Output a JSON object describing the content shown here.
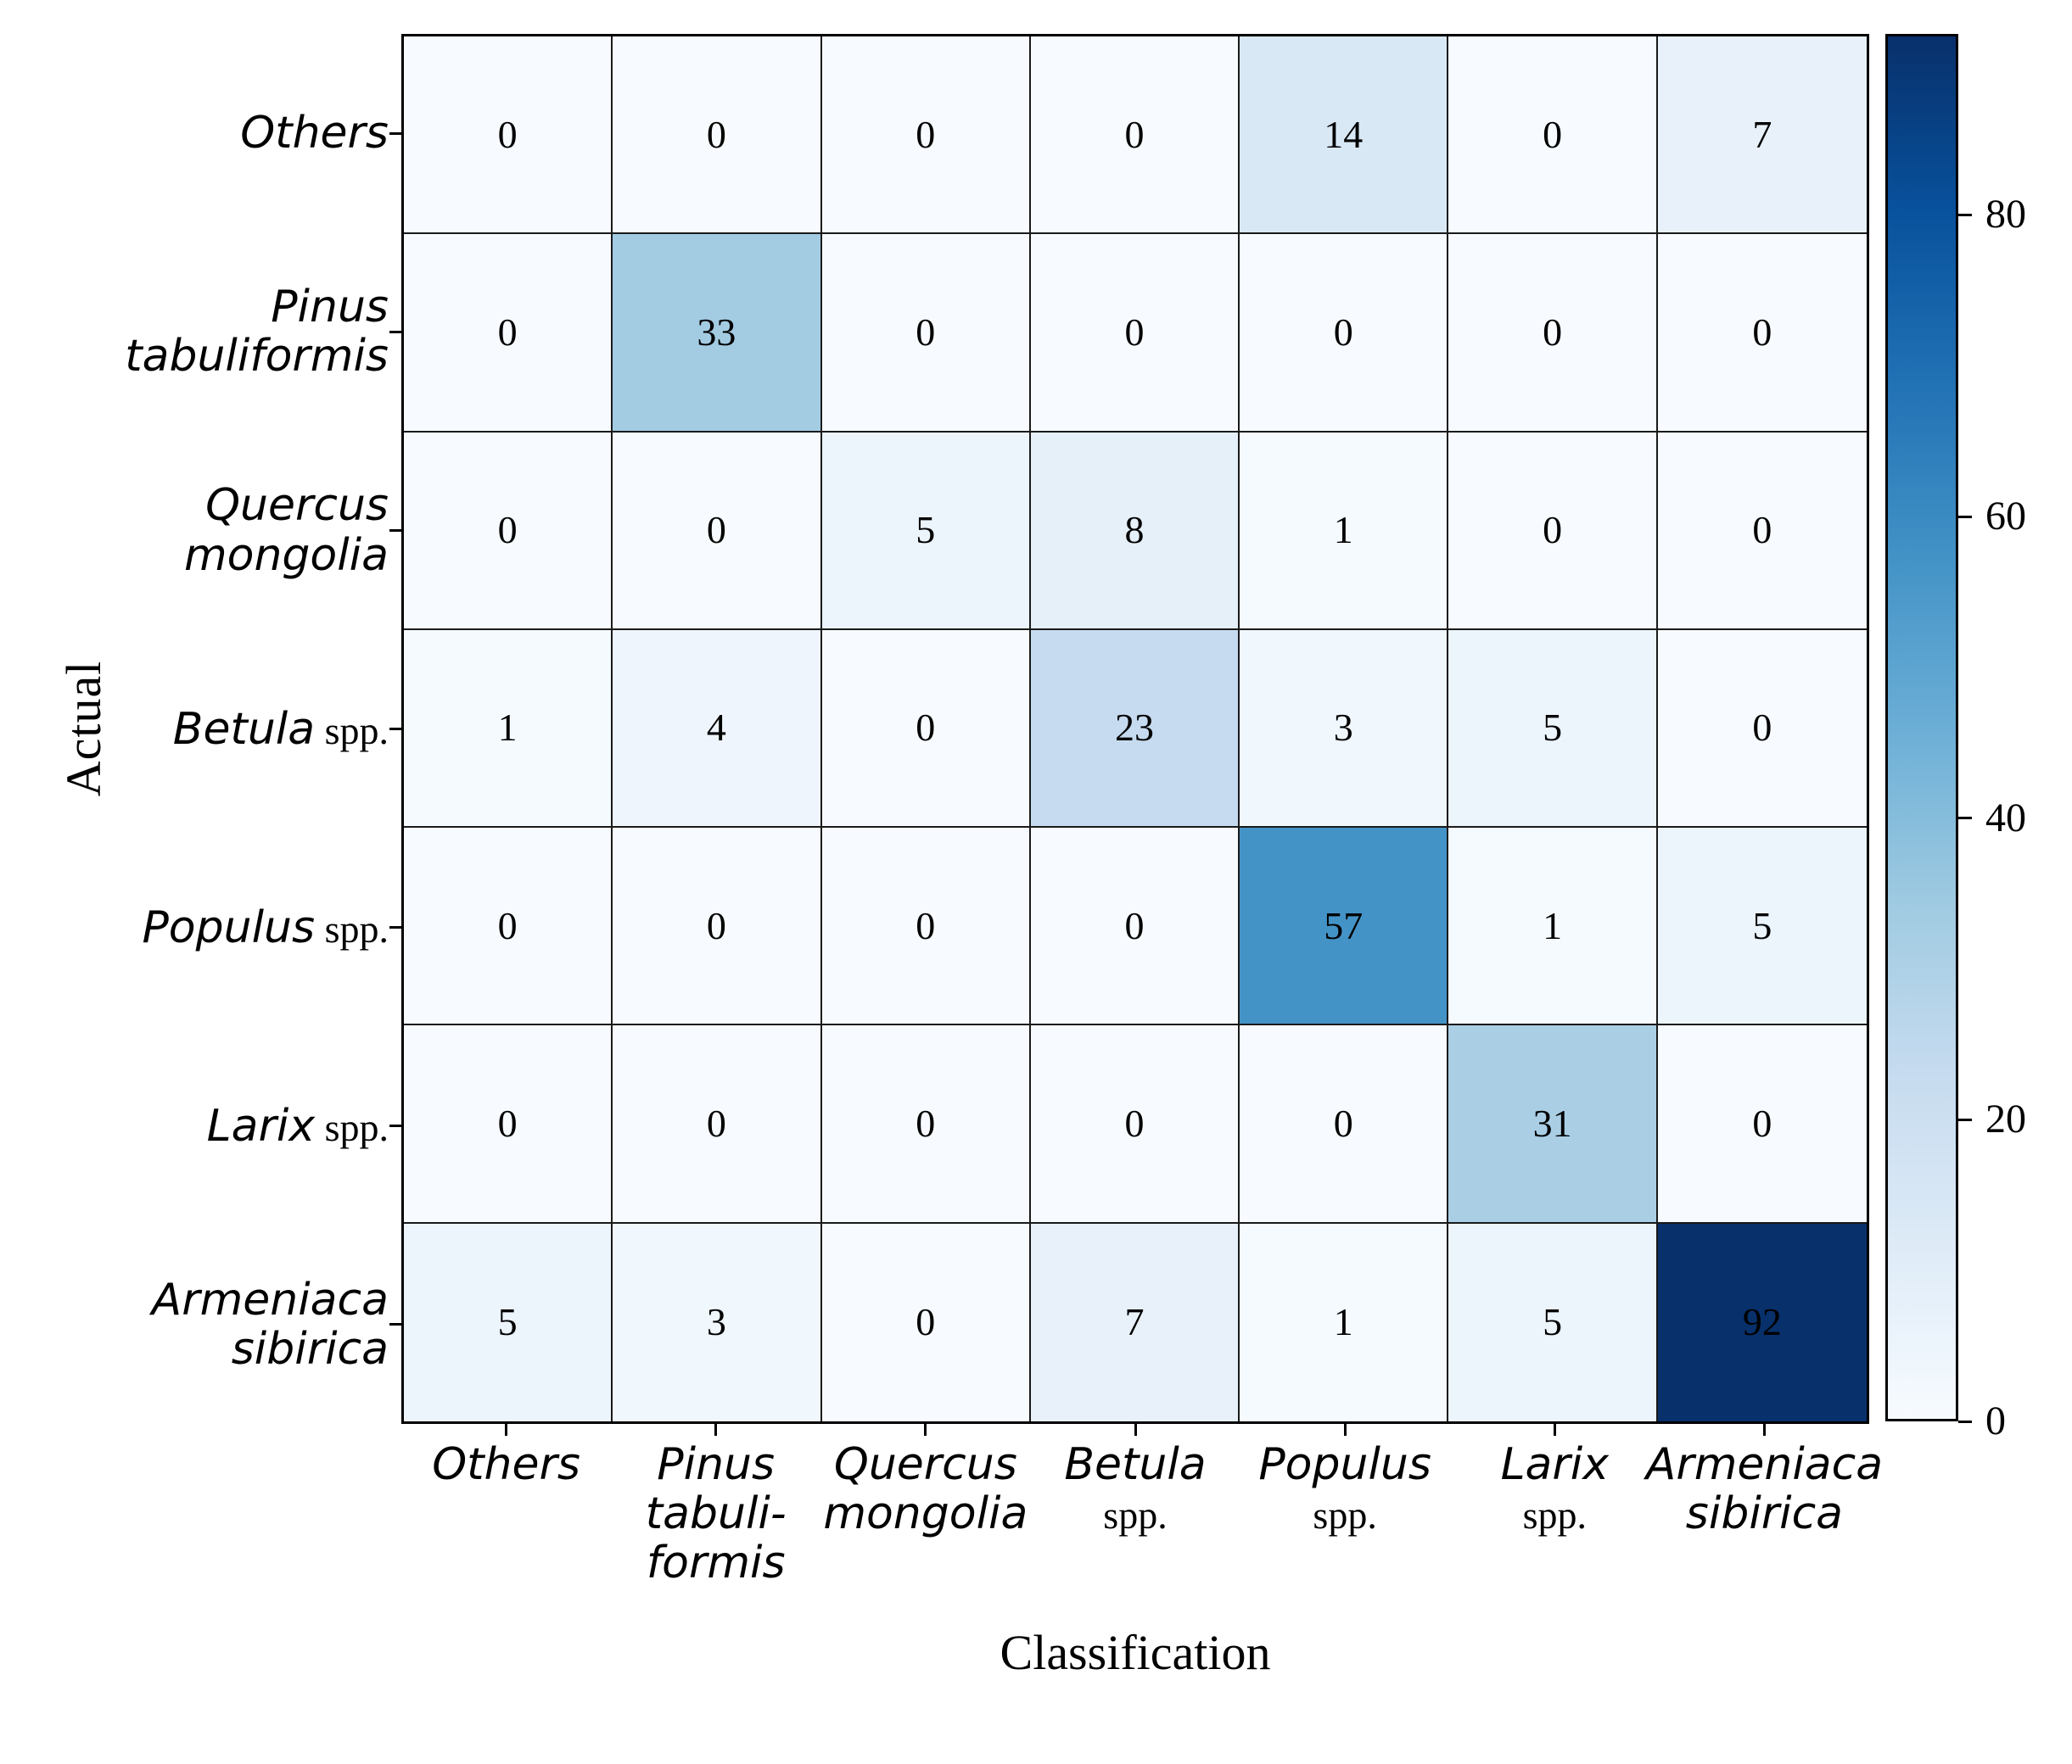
{
  "figure": {
    "background": "#ffffff",
    "grid_line_color": "#1a1a1a",
    "outer_border_color": "#000000",
    "text_color": "#000000"
  },
  "chart_data": {
    "type": "heatmap",
    "title": "",
    "xlabel": "Classification",
    "ylabel": "Actual",
    "colormap": "Blues",
    "vmin": 0,
    "vmax": 92,
    "legend_position": "right-colorbar",
    "grid": true,
    "colorbar_ticks": [
      0,
      20,
      40,
      60,
      80
    ],
    "colormap_anchors": [
      {
        "pos": 0.0,
        "color": "#f7fbff"
      },
      {
        "pos": 0.125,
        "color": "#deebf7"
      },
      {
        "pos": 0.25,
        "color": "#c6dbef"
      },
      {
        "pos": 0.375,
        "color": "#9ecae1"
      },
      {
        "pos": 0.5,
        "color": "#6baed6"
      },
      {
        "pos": 0.625,
        "color": "#4292c6"
      },
      {
        "pos": 0.75,
        "color": "#2171b5"
      },
      {
        "pos": 0.875,
        "color": "#08519c"
      },
      {
        "pos": 1.0,
        "color": "#08306b"
      }
    ],
    "row_labels": [
      {
        "name": "Others",
        "lines": [
          [
            {
              "t": "Others",
              "i": 1
            }
          ]
        ]
      },
      {
        "name": "Pinus tabuliformis",
        "lines": [
          [
            {
              "t": "Pinus",
              "i": 1
            }
          ],
          [
            {
              "t": "tabuliformis",
              "i": 1
            }
          ]
        ]
      },
      {
        "name": "Quercus mongolia",
        "lines": [
          [
            {
              "t": "Quercus",
              "i": 1
            }
          ],
          [
            {
              "t": "mongolia",
              "i": 1
            }
          ]
        ]
      },
      {
        "name": "Betula spp.",
        "lines": [
          [
            {
              "t": "Betula",
              "i": 1
            },
            {
              "t": " spp.",
              "i": 0
            }
          ]
        ]
      },
      {
        "name": "Populus spp.",
        "lines": [
          [
            {
              "t": "Populus",
              "i": 1
            },
            {
              "t": " spp.",
              "i": 0
            }
          ]
        ]
      },
      {
        "name": "Larix spp.",
        "lines": [
          [
            {
              "t": "Larix",
              "i": 1
            },
            {
              "t": " spp.",
              "i": 0
            }
          ]
        ]
      },
      {
        "name": "Armeniaca sibirica",
        "lines": [
          [
            {
              "t": "Armeniaca",
              "i": 1
            }
          ],
          [
            {
              "t": "sibirica",
              "i": 1
            }
          ]
        ]
      }
    ],
    "col_labels": [
      {
        "name": "Others",
        "lines": [
          [
            {
              "t": "Others",
              "i": 1
            }
          ]
        ]
      },
      {
        "name": "Pinus tabuliformis",
        "lines": [
          [
            {
              "t": "Pinus",
              "i": 1
            }
          ],
          [
            {
              "t": "tabuli-",
              "i": 1
            }
          ],
          [
            {
              "t": "formis",
              "i": 1
            }
          ]
        ]
      },
      {
        "name": "Quercus mongolia",
        "lines": [
          [
            {
              "t": "Quercus",
              "i": 1
            }
          ],
          [
            {
              "t": "mongolia",
              "i": 1
            }
          ]
        ]
      },
      {
        "name": "Betula spp.",
        "lines": [
          [
            {
              "t": "Betula",
              "i": 1
            }
          ],
          [
            {
              "t": "spp.",
              "i": 0
            }
          ]
        ]
      },
      {
        "name": "Populus spp.",
        "lines": [
          [
            {
              "t": "Populus",
              "i": 1
            }
          ],
          [
            {
              "t": "spp.",
              "i": 0
            }
          ]
        ]
      },
      {
        "name": "Larix spp.",
        "lines": [
          [
            {
              "t": "Larix",
              "i": 1
            }
          ],
          [
            {
              "t": "spp.",
              "i": 0
            }
          ]
        ]
      },
      {
        "name": "Armeniaca sibirica",
        "lines": [
          [
            {
              "t": "Armeniaca",
              "i": 1
            }
          ],
          [
            {
              "t": "sibirica",
              "i": 1
            }
          ]
        ]
      }
    ],
    "matrix": [
      [
        0,
        0,
        0,
        0,
        14,
        0,
        7
      ],
      [
        0,
        33,
        0,
        0,
        0,
        0,
        0
      ],
      [
        0,
        0,
        5,
        8,
        1,
        0,
        0
      ],
      [
        1,
        4,
        0,
        23,
        3,
        5,
        0
      ],
      [
        0,
        0,
        0,
        0,
        57,
        1,
        5
      ],
      [
        0,
        0,
        0,
        0,
        0,
        31,
        0
      ],
      [
        5,
        3,
        0,
        7,
        1,
        5,
        92
      ]
    ]
  }
}
